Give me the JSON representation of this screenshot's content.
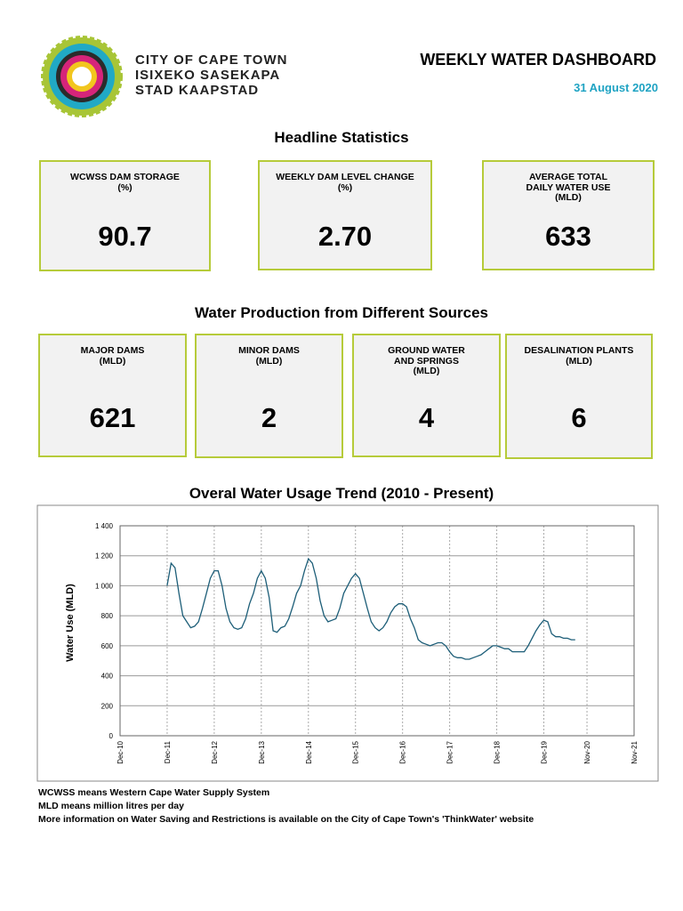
{
  "header": {
    "org_lines": [
      "CITY OF CAPE TOWN",
      "ISIXEKO SASEKAPA",
      "STAD KAAPSTAD"
    ],
    "title": "WEEKLY WATER DASHBOARD",
    "date": "31 August 2020"
  },
  "headline": {
    "heading": "Headline Statistics",
    "stats": [
      {
        "label_lines": [
          "WCWSS DAM STORAGE",
          "(%)"
        ],
        "value": "90.7"
      },
      {
        "label_lines": [
          "WEEKLY DAM LEVEL CHANGE",
          "(%)"
        ],
        "value": "2.70"
      },
      {
        "label_lines": [
          "AVERAGE TOTAL",
          "DAILY WATER USE",
          "(MLD)"
        ],
        "value": "633"
      }
    ]
  },
  "production": {
    "heading": "Water Production from Different Sources",
    "sources": [
      {
        "label_lines": [
          "MAJOR DAMS",
          "(MLD)"
        ],
        "value": "621"
      },
      {
        "label_lines": [
          "MINOR DAMS",
          "(MLD)"
        ],
        "value": "2"
      },
      {
        "label_lines": [
          "GROUND WATER",
          "AND SPRINGS",
          "(MLD)"
        ],
        "value": "4"
      },
      {
        "label_lines": [
          "DESALINATION PLANTS",
          "(MLD)"
        ],
        "value": "6"
      }
    ]
  },
  "chart_data": {
    "type": "line",
    "title": "Overal Water Usage Trend (2010 - Present)",
    "y_label": "Water Use (MLD)",
    "x": [
      "Dec-10",
      null,
      null,
      null,
      null,
      null,
      null,
      null,
      null,
      null,
      null,
      null,
      "Dec-11",
      null,
      null,
      null,
      null,
      null,
      null,
      null,
      null,
      null,
      null,
      null,
      "Dec-12",
      null,
      null,
      null,
      null,
      null,
      null,
      null,
      null,
      null,
      null,
      null,
      "Dec-13",
      null,
      null,
      null,
      null,
      null,
      null,
      null,
      null,
      null,
      null,
      null,
      "Dec-14",
      null,
      null,
      null,
      null,
      null,
      null,
      null,
      null,
      null,
      null,
      null,
      "Dec-15",
      null,
      null,
      null,
      null,
      null,
      null,
      null,
      null,
      null,
      null,
      null,
      "Dec-16",
      null,
      null,
      null,
      null,
      null,
      null,
      null,
      null,
      null,
      null,
      null,
      "Dec-17",
      null,
      null,
      null,
      null,
      null,
      null,
      null,
      null,
      null,
      null,
      null,
      "Dec-18",
      null,
      null,
      null,
      null,
      null,
      null,
      null,
      null,
      null,
      null,
      null,
      "Dec-19",
      null,
      null,
      null,
      null,
      null,
      null,
      null,
      null,
      null,
      null,
      "Nov-20",
      null,
      null,
      null,
      null,
      null,
      null,
      null,
      null,
      null,
      null,
      null,
      "Nov-21"
    ],
    "series": [
      {
        "name": "Water Use",
        "color": "#1d5e78",
        "values": [
          null,
          null,
          null,
          null,
          null,
          null,
          null,
          null,
          null,
          null,
          null,
          null,
          1000,
          1150,
          1120,
          950,
          800,
          760,
          720,
          730,
          760,
          850,
          950,
          1050,
          1100,
          1100,
          1000,
          850,
          760,
          720,
          710,
          720,
          780,
          880,
          950,
          1050,
          1100,
          1050,
          920,
          700,
          690,
          720,
          730,
          780,
          860,
          950,
          1000,
          1100,
          1180,
          1150,
          1050,
          900,
          800,
          760,
          770,
          780,
          850,
          950,
          1000,
          1050,
          1080,
          1050,
          950,
          850,
          760,
          720,
          700,
          720,
          760,
          820,
          860,
          880,
          880,
          860,
          780,
          720,
          640,
          620,
          610,
          600,
          610,
          620,
          620,
          600,
          560,
          530,
          520,
          520,
          510,
          510,
          520,
          530,
          540,
          560,
          580,
          600,
          600,
          590,
          580,
          580,
          560,
          560,
          560,
          560,
          600,
          650,
          700,
          740,
          770,
          760,
          680,
          660,
          660,
          650,
          650,
          640,
          640,
          null,
          null,
          null,
          null,
          null,
          null,
          null,
          null,
          null,
          null,
          null,
          null,
          null,
          null,
          null
        ]
      }
    ],
    "ylim": [
      0,
      1400
    ],
    "yticks": [
      0,
      200,
      400,
      600,
      800,
      {
        "value": 1000,
        "label": "1 000"
      },
      {
        "value": 1200,
        "label": "1 200"
      },
      {
        "value": 1400,
        "label": "1 400"
      }
    ],
    "grid": true
  },
  "footnotes": [
    "WCWSS means Western Cape Water Supply System",
    "MLD means million litres per day",
    "More information on Water Saving and Restrictions is available on the City of Cape Town's 'ThinkWater' website"
  ]
}
